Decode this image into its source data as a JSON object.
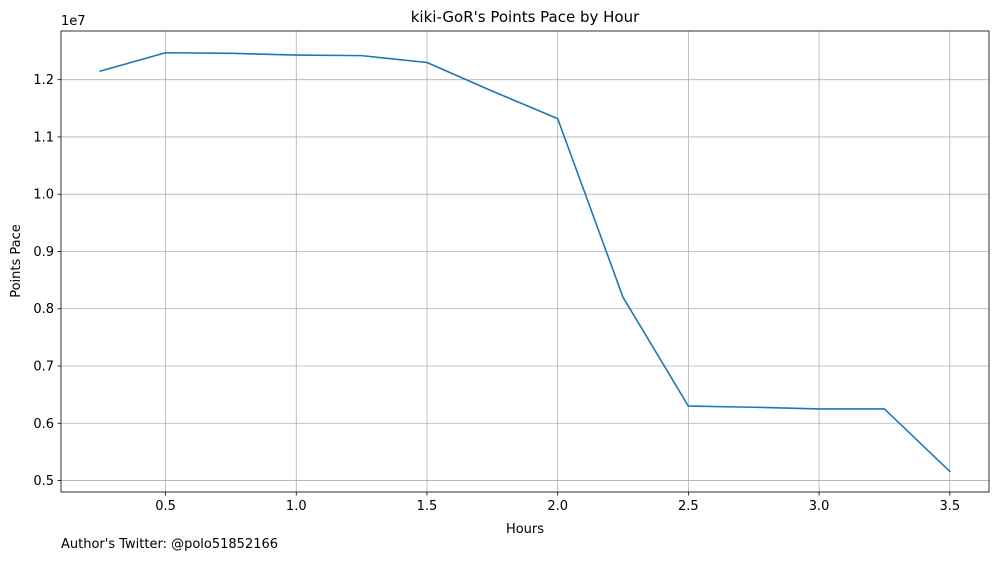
{
  "chart_data": {
    "type": "line",
    "title": "kiki-GoR's Points Pace by Hour",
    "xlabel": "Hours",
    "ylabel": "Points Pace",
    "y_offset_label": "1e7",
    "xlim": [
      0.1,
      3.65
    ],
    "ylim": [
      0.48,
      1.285
    ],
    "x_ticks": [
      "0.5",
      "1.0",
      "1.5",
      "2.0",
      "2.5",
      "3.0",
      "3.5"
    ],
    "y_ticks": [
      "0.5",
      "0.6",
      "0.7",
      "0.8",
      "0.9",
      "1.0",
      "1.1",
      "1.2"
    ],
    "grid": true,
    "line_color": "#1f77b4",
    "series": [
      {
        "x": [
          0.25,
          0.5,
          0.75,
          1.0,
          1.25,
          1.5,
          1.75,
          2.0,
          2.25,
          2.5,
          2.75,
          3.0,
          3.25,
          3.5
        ],
        "y": [
          1.215,
          1.247,
          1.246,
          1.243,
          1.242,
          1.23,
          1.18,
          1.132,
          0.82,
          0.63,
          0.628,
          0.625,
          0.625,
          0.516
        ]
      }
    ]
  },
  "footer": {
    "author_text": "Author's Twitter: @polo51852166"
  }
}
